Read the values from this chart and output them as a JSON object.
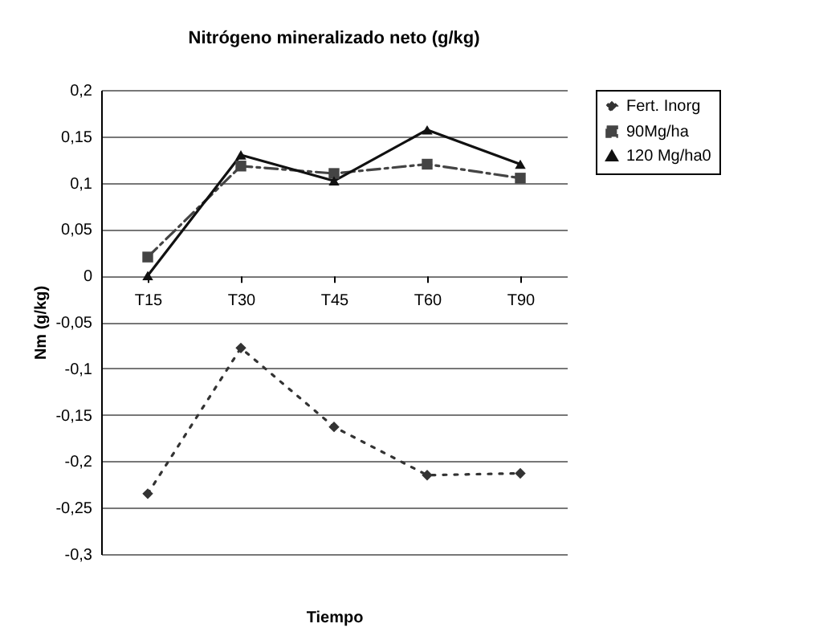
{
  "chart_data": {
    "type": "line",
    "title": "Nitrógeno mineralizado neto (g/kg)",
    "xlabel": "Tiempo",
    "ylabel": "Nm (g/kg)",
    "categories": [
      "T15",
      "T30",
      "T45",
      "T60",
      "T90"
    ],
    "series": [
      {
        "name": "Fert. Inorg",
        "color": "#333333",
        "marker": "diamond",
        "line_style": "dotted",
        "values": [
          -0.235,
          -0.078,
          -0.163,
          -0.215,
          -0.213
        ]
      },
      {
        "name": "90Mg/ha",
        "color": "#444444",
        "marker": "square",
        "line_style": "dashed",
        "values": [
          0.02,
          0.118,
          0.11,
          0.12,
          0.105
        ]
      },
      {
        "name": "120 Mg/ha0",
        "color": "#111111",
        "marker": "triangle",
        "line_style": "solid",
        "values": [
          0,
          0.13,
          0.102,
          0.157,
          0.12
        ]
      }
    ],
    "ylim": [
      -0.3,
      0.2
    ],
    "yticks": [
      {
        "value": -0.3,
        "label": "-0,3"
      },
      {
        "value": -0.25,
        "label": "-0,25"
      },
      {
        "value": -0.2,
        "label": "-0,2"
      },
      {
        "value": -0.15,
        "label": "-0,15"
      },
      {
        "value": -0.1,
        "label": "-0,1"
      },
      {
        "value": -0.05,
        "label": "-0,05"
      },
      {
        "value": 0,
        "label": "0"
      },
      {
        "value": 0.05,
        "label": "0,05"
      },
      {
        "value": 0.1,
        "label": "0,1"
      },
      {
        "value": 0.15,
        "label": "0,15"
      },
      {
        "value": 0.2,
        "label": "0,2"
      }
    ],
    "grid": "y",
    "legend": "right"
  }
}
